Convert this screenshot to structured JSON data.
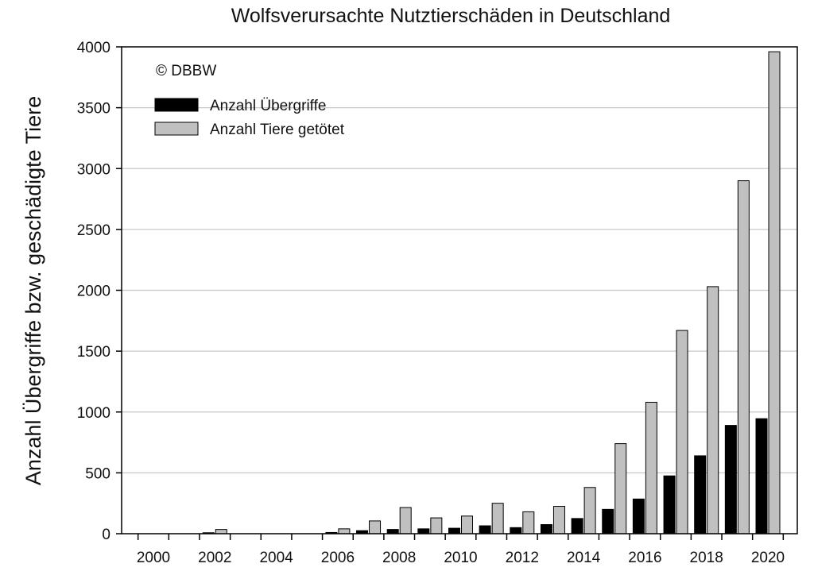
{
  "chart_data": {
    "type": "bar",
    "title": "Wolfsverursachte Nutztierschäden in Deutschland",
    "annotation": "© DBBW",
    "xlabel": "",
    "ylabel": "Anzahl Übergriffe bzw. geschädigte Tiere",
    "ylim": [
      0,
      4000
    ],
    "yticks": [
      0,
      500,
      1000,
      1500,
      2000,
      2500,
      3000,
      3500,
      4000
    ],
    "categories": [
      "2000",
      "2001",
      "2002",
      "2003",
      "2004",
      "2005",
      "2006",
      "2007",
      "2008",
      "2009",
      "2010",
      "2011",
      "2012",
      "2013",
      "2014",
      "2015",
      "2016",
      "2017",
      "2018",
      "2019",
      "2020"
    ],
    "xtick_labels": [
      "2000",
      "2002",
      "2004",
      "2006",
      "2008",
      "2010",
      "2012",
      "2014",
      "2016",
      "2018",
      "2020"
    ],
    "grid": "horizontal",
    "legend_position": "top-left",
    "series": [
      {
        "name": "Anzahl Übergriffe",
        "color": "#000000",
        "values": [
          0,
          0,
          8,
          0,
          0,
          0,
          10,
          25,
          35,
          40,
          45,
          65,
          50,
          75,
          125,
          200,
          285,
          475,
          640,
          890,
          945
        ]
      },
      {
        "name": "Anzahl Tiere getötet",
        "color": "#c0c0c0",
        "values": [
          0,
          0,
          35,
          0,
          0,
          0,
          40,
          105,
          215,
          130,
          145,
          250,
          180,
          225,
          380,
          740,
          1080,
          1670,
          2030,
          2900,
          3960
        ]
      }
    ]
  }
}
